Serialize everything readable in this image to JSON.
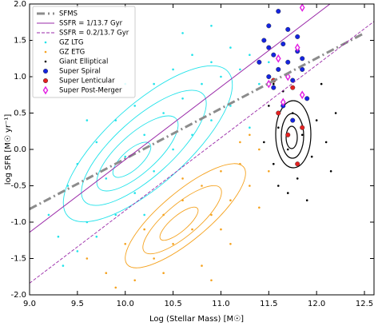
{
  "chart_data": {
    "type": "scatter",
    "xlabel": "Log (Stellar Mass) [M☉]",
    "ylabel": "log SFR [M☉ yr⁻¹]",
    "xlim": [
      9.0,
      12.6
    ],
    "ylim": [
      -2.0,
      2.0
    ],
    "xticks": [
      {
        "value": 9.0,
        "label": "9.0"
      },
      9.5,
      {
        "value": 10.0,
        "label": "10.0"
      },
      10.5,
      {
        "value": 11.0,
        "label": "11.0"
      },
      11.5,
      {
        "value": 12.0,
        "label": "12.0"
      },
      12.5
    ],
    "yticks": [
      {
        "value": -2.0,
        "label": "-2.0"
      },
      -1.5,
      {
        "value": -1.0,
        "label": "-1.0"
      },
      -0.5,
      {
        "value": 0.0,
        "label": "0.0"
      },
      0.5,
      {
        "value": 1.0,
        "label": "1.0"
      },
      1.5,
      {
        "value": 2.0,
        "label": "2.0"
      }
    ],
    "legend": "upper left",
    "series": [
      {
        "name": "SFMS",
        "color": "#8c8c8c",
        "line_style": "dashdot",
        "x": [
          9.0,
          12.5
        ],
        "values": [
          -0.82,
          1.6
        ]
      },
      {
        "name": "SSFR = 1/13.7 Gyr",
        "color": "#9a2aa8",
        "line_style": "solid",
        "x": [
          9.0,
          12.14
        ],
        "values": [
          -1.14,
          2.0
        ]
      },
      {
        "name": "SSFR = 0.2/13.7 Gyr",
        "color": "#9a2aa8",
        "line_style": "dashed",
        "x": [
          9.0,
          12.6
        ],
        "values": [
          -1.84,
          1.76
        ]
      },
      {
        "name": "GZ LTG",
        "color": "#22e3ea",
        "marker": "dot",
        "x": [
          9.2,
          9.3,
          9.4,
          9.5,
          9.6,
          9.7,
          9.8,
          9.9,
          10.0,
          10.1,
          10.2,
          10.3,
          10.4,
          10.5,
          10.6,
          10.7,
          10.8,
          10.9,
          11.0,
          11.1,
          11.2,
          11.3,
          11.4,
          11.5,
          9.5,
          9.7,
          9.9,
          10.1,
          10.3,
          10.5,
          10.7,
          10.9,
          11.1,
          9.35,
          10.6,
          10.9,
          9.6,
          10.0,
          10.2,
          11.3
        ],
        "values": [
          -0.9,
          -1.2,
          -0.5,
          -0.2,
          -1.0,
          0.1,
          -0.4,
          0.4,
          -0.1,
          0.6,
          0.2,
          0.9,
          0.5,
          1.1,
          0.7,
          1.3,
          0.9,
          1.2,
          1.0,
          1.4,
          1.1,
          1.3,
          0.9,
          1.2,
          -1.4,
          -1.2,
          -0.9,
          -0.6,
          -0.3,
          0.0,
          0.2,
          0.4,
          0.6,
          -1.6,
          1.6,
          1.7,
          0.4,
          0.9,
          -0.9,
          0.3
        ]
      },
      {
        "name": "GZ ETG",
        "color": "#f5a21e",
        "marker": "dot",
        "x": [
          9.6,
          9.8,
          10.0,
          10.1,
          10.2,
          10.3,
          10.4,
          10.5,
          10.6,
          10.7,
          10.8,
          10.9,
          11.0,
          11.1,
          11.2,
          11.3,
          11.4,
          11.5,
          11.3,
          10.4,
          10.8,
          11.1,
          10.9,
          11.0,
          11.4,
          10.6,
          11.2,
          9.9
        ],
        "values": [
          -1.5,
          -1.7,
          -1.3,
          -1.8,
          -1.1,
          -1.5,
          -0.9,
          -1.3,
          -0.7,
          -1.1,
          -0.5,
          -0.9,
          -0.3,
          -0.7,
          -0.2,
          -0.5,
          0.0,
          -0.3,
          0.2,
          -1.7,
          -1.6,
          -1.3,
          -1.8,
          -1.1,
          -0.8,
          -0.4,
          0.1,
          -1.9
        ]
      },
      {
        "name": "Giant Elliptical",
        "color": "#000000",
        "marker": "dot",
        "x": [
          11.45,
          11.5,
          11.55,
          11.6,
          11.65,
          11.7,
          11.75,
          11.8,
          11.85,
          11.9,
          11.95,
          12.0,
          12.05,
          12.1,
          12.15,
          11.7,
          11.6,
          12.2,
          11.55,
          11.9
        ],
        "values": [
          0.1,
          0.6,
          -0.2,
          0.3,
          0.8,
          0.0,
          0.5,
          -0.4,
          0.2,
          0.7,
          -0.1,
          0.4,
          0.9,
          0.1,
          -0.3,
          -0.6,
          -0.5,
          0.5,
          0.9,
          -0.7
        ]
      },
      {
        "name": "Super Spiral",
        "color": "#1424e0",
        "marker": "circle",
        "x": [
          11.4,
          11.45,
          11.5,
          11.5,
          11.55,
          11.6,
          11.6,
          11.65,
          11.7,
          11.7,
          11.75,
          11.8,
          11.8,
          11.85,
          11.9,
          11.55,
          11.65,
          11.75,
          11.85,
          11.5
        ],
        "values": [
          1.2,
          1.5,
          1.0,
          1.7,
          1.3,
          1.9,
          1.1,
          1.45,
          1.2,
          1.65,
          0.95,
          1.35,
          1.55,
          1.1,
          0.7,
          0.85,
          0.6,
          0.4,
          1.25,
          1.4
        ]
      },
      {
        "name": "Super Lenticular",
        "color": "#e52020",
        "marker": "circle",
        "x": [
          11.55,
          11.6,
          11.7,
          11.75,
          11.85,
          11.8
        ],
        "values": [
          0.95,
          0.5,
          0.2,
          0.85,
          0.3,
          -0.2
        ]
      },
      {
        "name": "Super Post-Merger",
        "color": "#e21ee2",
        "marker": "diamond",
        "x": [
          11.85,
          11.5,
          11.6,
          11.7,
          11.65,
          11.8,
          11.85
        ],
        "values": [
          1.95,
          0.9,
          1.25,
          1.0,
          0.65,
          1.4,
          0.75
        ]
      }
    ]
  }
}
